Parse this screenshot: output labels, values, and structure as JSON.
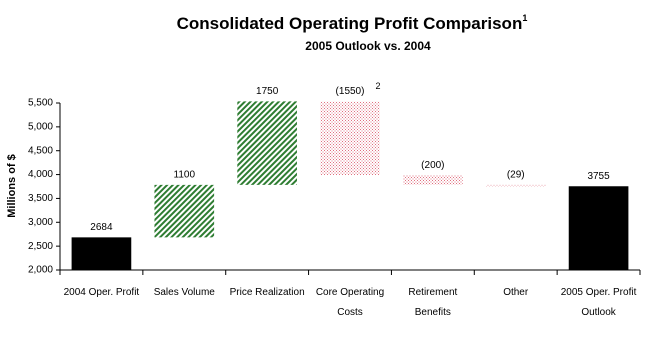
{
  "chart_data": {
    "type": "waterfall",
    "title": "Consolidated Operating Profit Comparison",
    "title_note": "1",
    "subtitle": "2005 Outlook vs. 2004",
    "y_label": "Millions of $",
    "categories": [
      "2004 Oper. Profit",
      "Sales Volume",
      "Price Realization",
      "Core Operating Costs",
      "Retirement Benefits",
      "Other",
      "2005 Oper. Profit Outlook"
    ],
    "values": [
      2684,
      1100,
      1750,
      -1550,
      -200,
      -29,
      3755
    ],
    "value_labels": [
      "2684",
      "1100",
      "1750",
      "(1550)",
      "(200)",
      "(29)",
      "3755"
    ],
    "annotation": {
      "index": 3,
      "text": "2"
    },
    "total_color": "#000000",
    "increase_color": "#2e7d32",
    "decrease_color": "#e07080",
    "ylim": [
      2000,
      5500
    ],
    "yticks": [
      {
        "value": 2000,
        "label": "2,000"
      },
      {
        "value": 2500,
        "label": "2,500"
      },
      {
        "value": 3000,
        "label": "3,000"
      },
      {
        "value": 3500,
        "label": "3,500"
      },
      {
        "value": 4000,
        "label": "4,000"
      },
      {
        "value": 4500,
        "label": "4,500"
      },
      {
        "value": 5000,
        "label": "5,000"
      },
      {
        "value": 5500,
        "label": "5,500"
      }
    ]
  }
}
